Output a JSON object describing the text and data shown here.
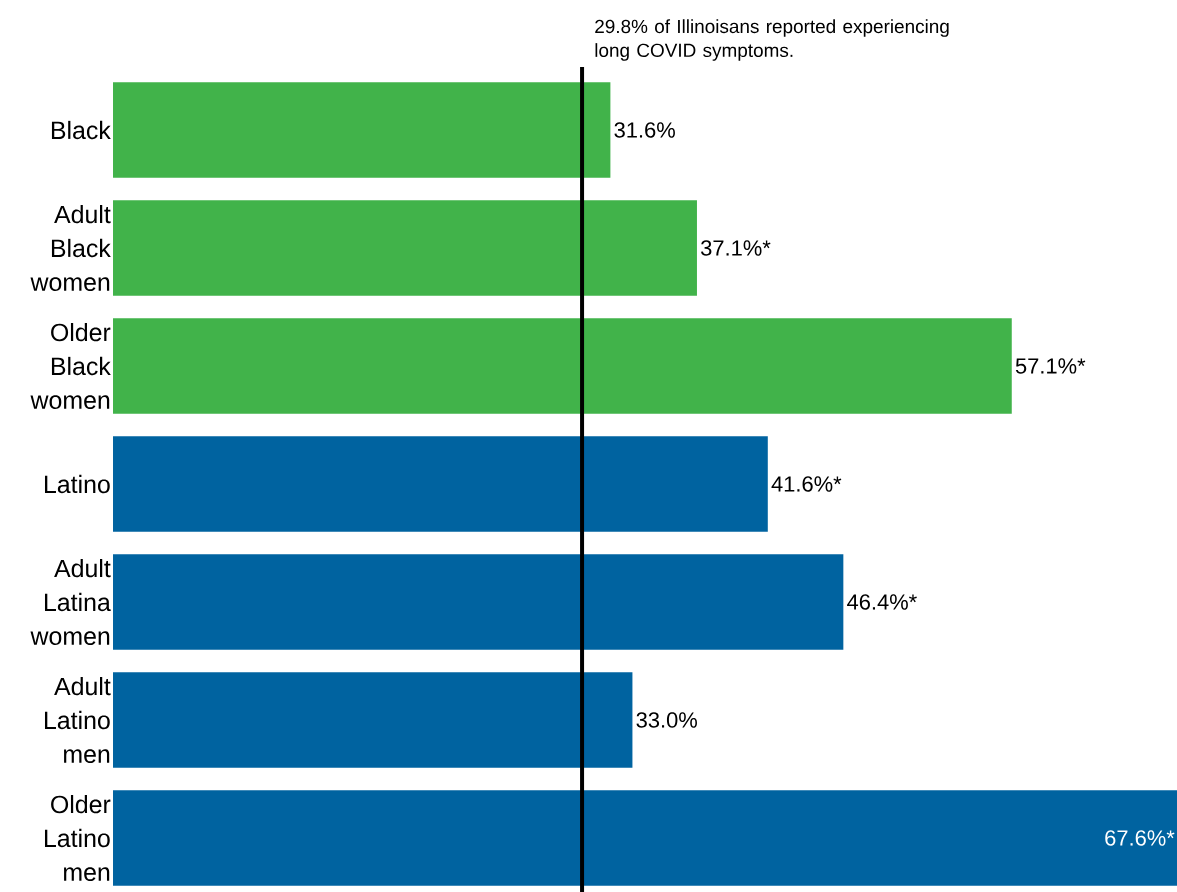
{
  "chart_data": {
    "type": "bar",
    "orientation": "horizontal",
    "categories": [
      "Black",
      "Adult Black women",
      "Older Black women",
      "Latino",
      "Adult Latina women",
      "Adult Latino men",
      "Older Latino men"
    ],
    "values": [
      31.6,
      37.1,
      57.1,
      41.6,
      46.4,
      33.0,
      67.6
    ],
    "value_labels": [
      "31.6%",
      "37.1%*",
      "57.1%*",
      "41.6%*",
      "46.4%*",
      "33.0%",
      "67.6%*"
    ],
    "colors": [
      "#41b34a",
      "#41b34a",
      "#41b34a",
      "#0063a0",
      "#0063a0",
      "#0063a0",
      "#0063a0"
    ],
    "tick_labels": "y",
    "ref_lines": [
      {
        "axis": "x",
        "value": 29.8,
        "label": "29.8% of Illinoisans reported experiencing long COVID symptoms.",
        "color": "#000000"
      }
    ]
  }
}
